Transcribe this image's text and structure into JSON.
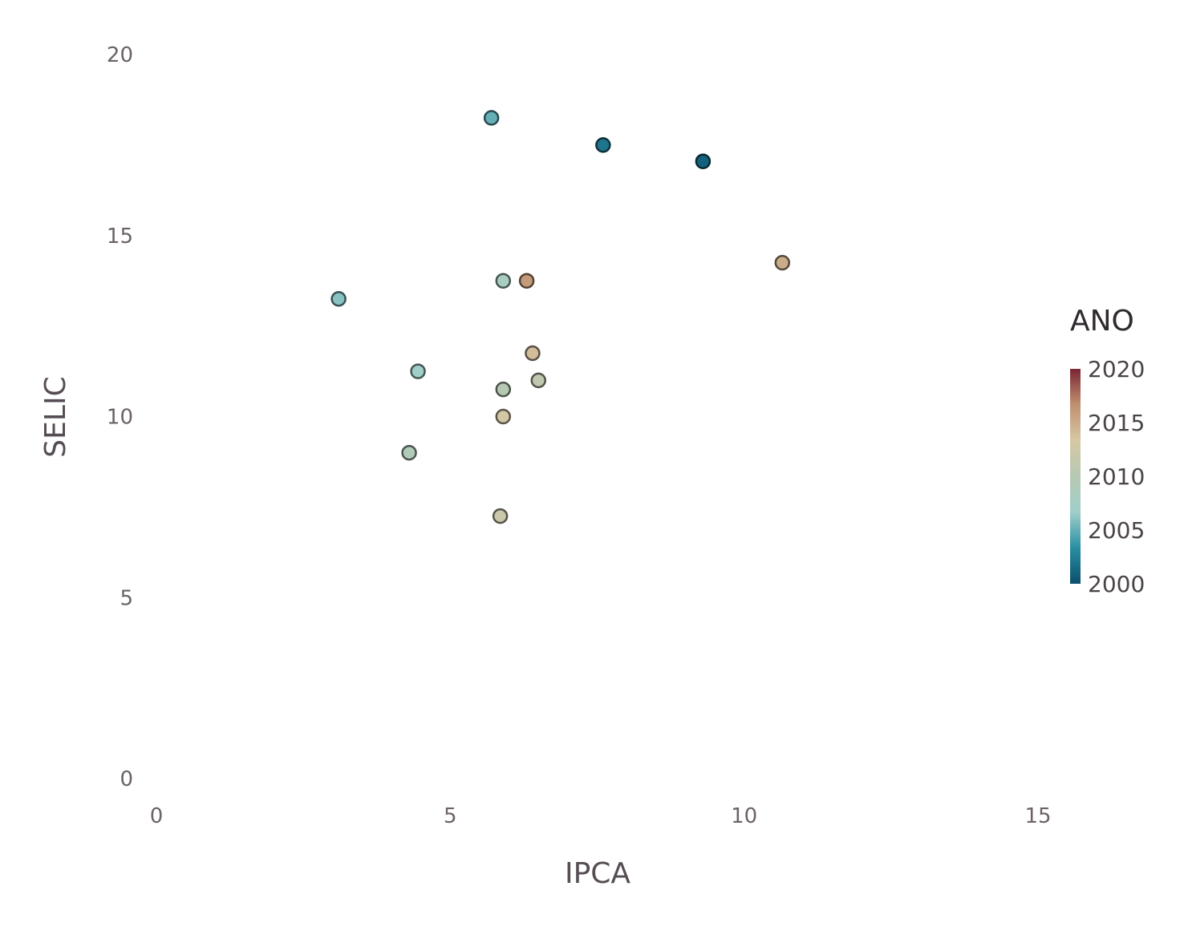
{
  "chart_data": {
    "type": "scatter",
    "xlabel": "IPCA",
    "ylabel": "SELIC",
    "xlim": [
      0,
      15
    ],
    "ylim": [
      0,
      20
    ],
    "x_ticks": [
      "0",
      "5",
      "10",
      "15"
    ],
    "y_ticks": [
      "0",
      "5",
      "10",
      "15",
      "20"
    ],
    "grid": false,
    "legend": {
      "title": "ANO",
      "placement": "right",
      "type": "colorbar",
      "range": [
        2000,
        2020
      ],
      "ticks": [
        "2000",
        "2005",
        "2010",
        "2015",
        "2020"
      ],
      "colors": [
        "#0b4f6c",
        "#2a8ea3",
        "#9fcfca",
        "#b7c9b3",
        "#d6c8a4",
        "#c09070",
        "#7a2535"
      ]
    },
    "points": [
      {
        "x": 9.3,
        "y": 17.05,
        "year": 2001
      },
      {
        "x": 7.6,
        "y": 17.5,
        "year": 2002
      },
      {
        "x": 5.7,
        "y": 18.25,
        "year": 2005
      },
      {
        "x": 3.1,
        "y": 13.25,
        "year": 2006
      },
      {
        "x": 4.45,
        "y": 11.25,
        "year": 2007
      },
      {
        "x": 5.9,
        "y": 13.75,
        "year": 2008
      },
      {
        "x": 4.3,
        "y": 9.0,
        "year": 2009
      },
      {
        "x": 5.9,
        "y": 10.75,
        "year": 2010
      },
      {
        "x": 6.5,
        "y": 11.0,
        "year": 2011
      },
      {
        "x": 5.85,
        "y": 7.25,
        "year": 2012
      },
      {
        "x": 5.9,
        "y": 10.0,
        "year": 2013
      },
      {
        "x": 6.4,
        "y": 11.75,
        "year": 2014
      },
      {
        "x": 10.65,
        "y": 14.25,
        "year": 2015
      },
      {
        "x": 6.3,
        "y": 13.75,
        "year": 2016
      }
    ]
  }
}
